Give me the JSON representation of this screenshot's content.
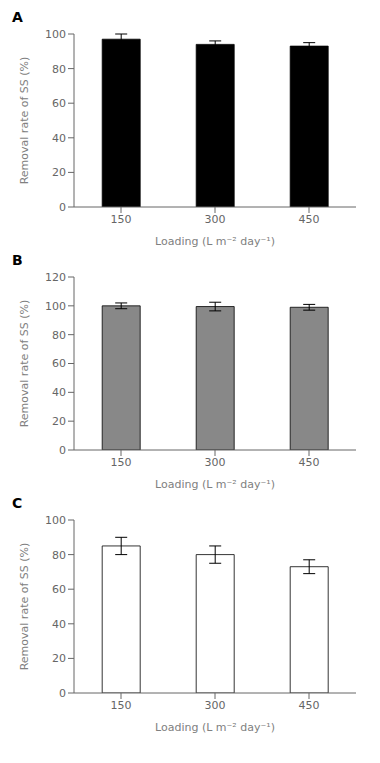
{
  "chart_data": [
    {
      "type": "bar",
      "title": "A",
      "xlabel": "Loading (L m⁻² day⁻¹)",
      "ylabel": "Removal rate of SS (%)",
      "categories": [
        "150",
        "300",
        "450"
      ],
      "values": [
        97,
        94,
        93
      ],
      "errors": [
        3,
        2,
        2
      ],
      "color": "#000000",
      "ylim": [
        0,
        100
      ],
      "yticks": [
        0,
        20,
        40,
        60,
        80,
        100
      ],
      "grid": false
    },
    {
      "type": "bar",
      "title": "B",
      "xlabel": "Loading (L m⁻² day⁻¹)",
      "ylabel": "Removal rate of SS (%)",
      "categories": [
        "150",
        "300",
        "450"
      ],
      "values": [
        100,
        99.5,
        99
      ],
      "errors": [
        2,
        3,
        2
      ],
      "color": "#888888",
      "ylim": [
        0,
        120
      ],
      "yticks": [
        0,
        20,
        40,
        60,
        80,
        100,
        120
      ],
      "grid": false
    },
    {
      "type": "bar",
      "title": "C",
      "xlabel": "Loading (L m⁻² day⁻¹)",
      "ylabel": "Removal rate of SS (%)",
      "categories": [
        "150",
        "300",
        "450"
      ],
      "values": [
        85,
        80,
        73
      ],
      "errors": [
        5,
        5,
        4
      ],
      "color": "#ffffff",
      "ylim": [
        0,
        100
      ],
      "yticks": [
        0,
        20,
        40,
        60,
        80,
        100
      ],
      "grid": false
    }
  ]
}
